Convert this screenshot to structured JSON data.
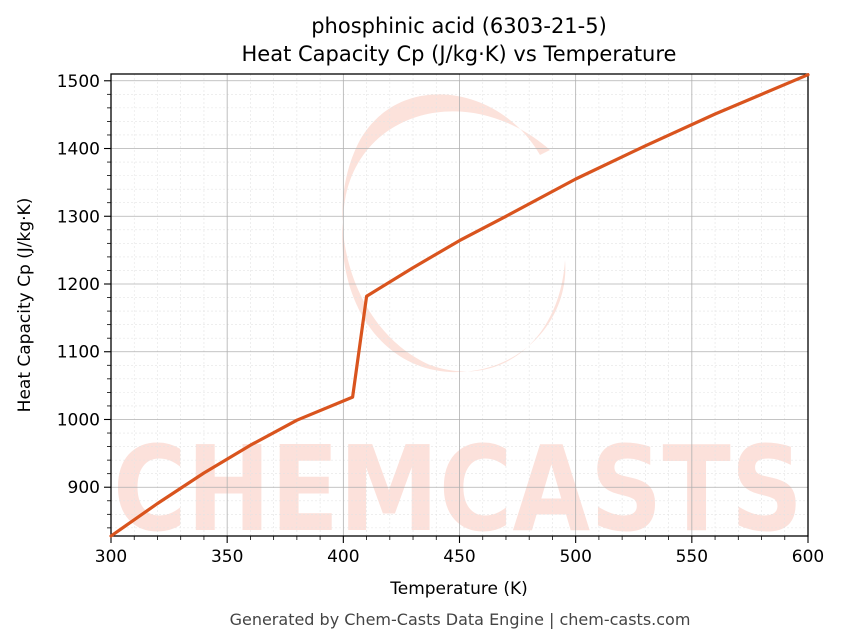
{
  "chart_data": {
    "type": "line",
    "title": "phosphinic acid (6303-21-5)",
    "subtitle": "Heat Capacity Cp (J/kg·K) vs Temperature",
    "xlabel": "Temperature (K)",
    "ylabel": "Heat Capacity Cp (J/kg·K)",
    "xlim": [
      300,
      600
    ],
    "ylim": [
      828,
      1510
    ],
    "x_ticks": [
      300,
      350,
      400,
      450,
      500,
      550,
      600
    ],
    "y_ticks": [
      900,
      1000,
      1100,
      1200,
      1300,
      1400,
      1500
    ],
    "grid": true,
    "series_color": "#d9541e",
    "series": [
      {
        "x": [
          300,
          320,
          340,
          360,
          380,
          404,
          410,
          430,
          450,
          470,
          500,
          530,
          560,
          600
        ],
        "y": [
          828,
          876,
          921,
          962,
          999,
          1033,
          1182,
          1224,
          1264,
          1300,
          1355,
          1404,
          1451,
          1509
        ]
      }
    ]
  },
  "footer": "Generated by Chem-Casts Data Engine | chem-casts.com",
  "watermark": "CHEMCASTS"
}
